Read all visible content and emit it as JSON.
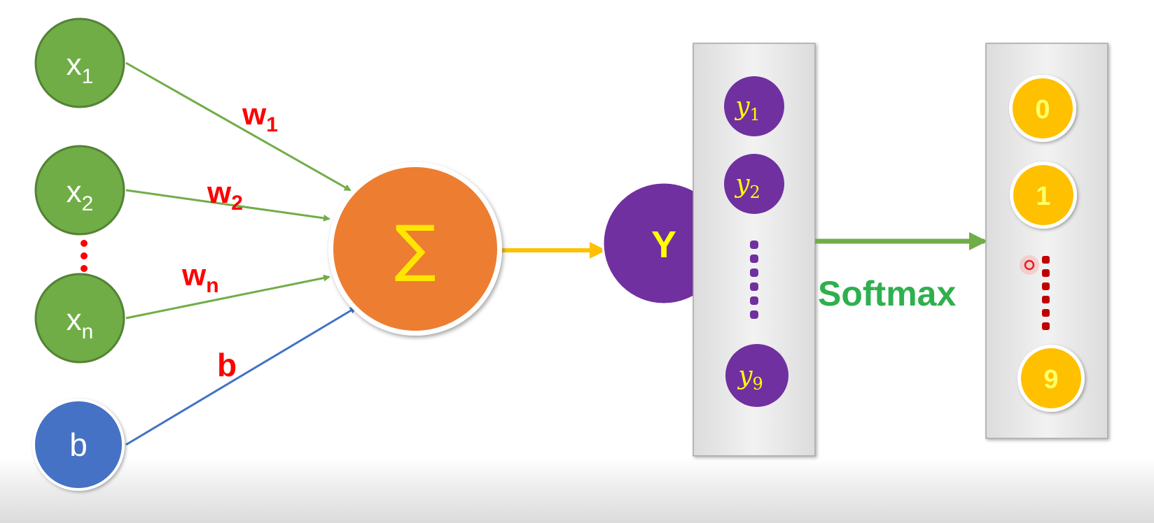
{
  "colors": {
    "input_fill": "#70AD47",
    "input_stroke": "#548235",
    "bias_fill": "#4472C4",
    "sum_fill": "#ED7D31",
    "sum_symbol": "#FFE600",
    "arrow_green": "#70AD47",
    "arrow_blue": "#4472C4",
    "arrow_yellow": "#FFC000",
    "weight_label": "#FF0000",
    "dots_red": "#FF0000",
    "purple": "#7030A0",
    "y_text": "#FFFF00",
    "yellow_node": "#FFC000",
    "yellow_text": "#FFFF66",
    "softmax_text": "#2EB04E",
    "dots_darkred": "#C00000"
  },
  "inputs": [
    {
      "name": "x",
      "sub": "1"
    },
    {
      "name": "x",
      "sub": "2"
    },
    {
      "name": "x",
      "sub": "n"
    }
  ],
  "bias_node": {
    "label": "b"
  },
  "weights": [
    {
      "name": "w",
      "sub": "1"
    },
    {
      "name": "w",
      "sub": "2"
    },
    {
      "name": "w",
      "sub": "n"
    }
  ],
  "bias_weight": {
    "label": "b"
  },
  "sum_node": {
    "symbol": "∑"
  },
  "output_node": {
    "label": "Y"
  },
  "y_vector": [
    {
      "name": "y",
      "sub": "1"
    },
    {
      "name": "y",
      "sub": "2"
    },
    {
      "name": "y",
      "sub": "9"
    }
  ],
  "softmax_label": "Softmax",
  "classes": [
    "0",
    "1",
    "9"
  ]
}
